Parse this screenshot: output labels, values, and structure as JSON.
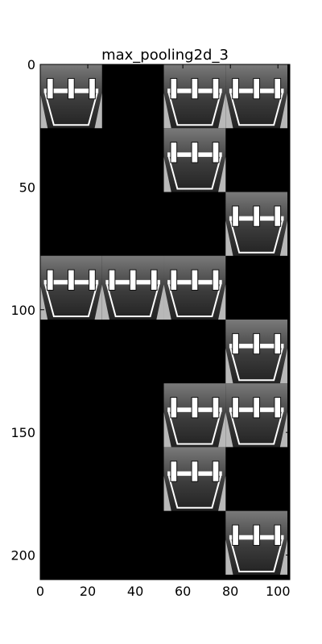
{
  "figure": {
    "title": "max_pooling2d_3",
    "x_axis": {
      "range": [
        0,
        105
      ],
      "ticks": [
        0,
        20,
        40,
        60,
        80,
        100
      ]
    },
    "y_axis": {
      "range": [
        0,
        210
      ],
      "ticks": [
        0,
        50,
        100,
        150,
        200
      ],
      "inverted": true
    },
    "grid": {
      "columns": 4,
      "rows": 8,
      "tile_size": 26,
      "filled_tiles": [
        [
          0,
          0
        ],
        [
          0,
          2
        ],
        [
          0,
          3
        ],
        [
          1,
          2
        ],
        [
          2,
          3
        ],
        [
          3,
          0
        ],
        [
          3,
          1
        ],
        [
          3,
          2
        ],
        [
          4,
          3
        ],
        [
          5,
          2
        ],
        [
          5,
          3
        ],
        [
          6,
          2
        ],
        [
          7,
          3
        ]
      ]
    },
    "colors": {
      "background": "#000000",
      "frame": "#000000",
      "tile_dark": "#3c3c3c",
      "tile_mid": "#7a7a7a",
      "tile_light": "#b8b8b8",
      "stroke_white": "#ffffff"
    }
  }
}
